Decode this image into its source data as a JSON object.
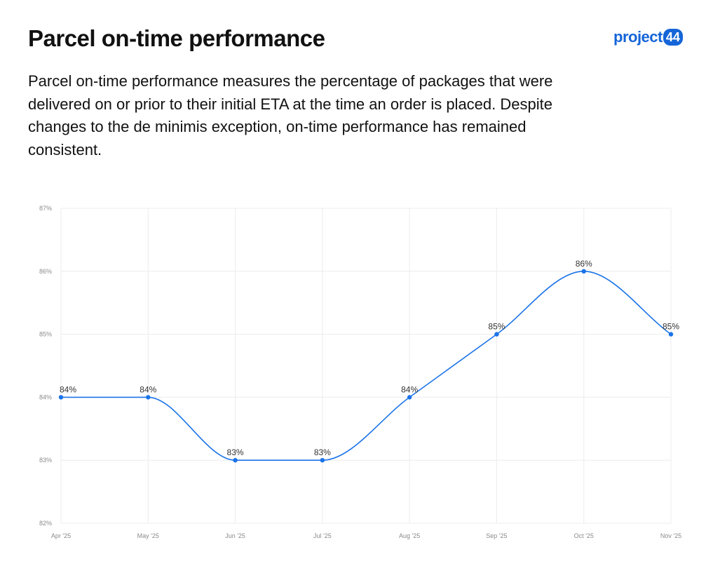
{
  "header": {
    "title": "Parcel on-time performance",
    "description": "Parcel on-time performance measures the percentage of packages that were delivered on or prior to their initial ETA at the time an order is placed. Despite changes to the de minimis exception, on-time performance has remained consistent."
  },
  "logo": {
    "text": "project",
    "badge": "44"
  },
  "colors": {
    "line": "#1a73e8",
    "grid": "#ececec",
    "brand": "#1565d8"
  },
  "chart_data": {
    "type": "line",
    "categories": [
      "Apr '25",
      "May '25",
      "Jun '25",
      "Jul '25",
      "Aug '25",
      "Sep '25",
      "Oct '25",
      "Nov '25"
    ],
    "series": [
      {
        "values": [
          84,
          84,
          83,
          83,
          84,
          85,
          86,
          85
        ],
        "labels": [
          "84%",
          "84%",
          "83%",
          "83%",
          "84%",
          "85%",
          "86%",
          "85%"
        ]
      }
    ],
    "ylim": [
      82,
      87
    ],
    "yticks": [
      "82%",
      "83%",
      "84%",
      "85%",
      "86%",
      "87%"
    ],
    "grid": true,
    "smooth": true
  }
}
